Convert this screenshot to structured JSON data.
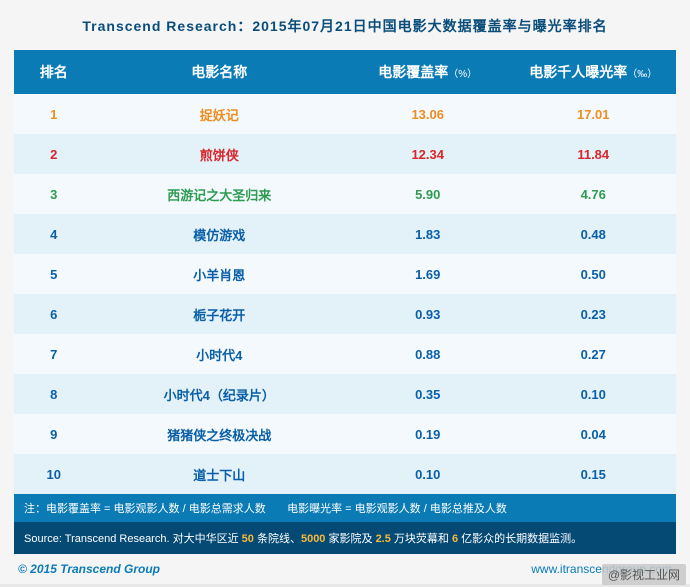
{
  "title": "Transcend Research：2015年07月21日中国电影大数据覆盖率与曝光率排名",
  "columns": {
    "rank": {
      "label": "排名"
    },
    "name": {
      "label": "电影名称"
    },
    "coverage": {
      "label": "电影覆盖率",
      "unit": "（%）"
    },
    "exposure": {
      "label": "电影千人曝光率",
      "unit": "（‰）"
    }
  },
  "colors": {
    "header_bg": "#0a7bb5",
    "header_fg": "#ffffff",
    "row_odd": "#f3f9fc",
    "row_even": "#e3f1f8",
    "source_bg": "#044a75",
    "highlight": "#f7b93a",
    "title_fg": "#0a4d7a",
    "rank1": "#f08c1e",
    "rank2": "#d9262c",
    "rank3": "#2e9b52",
    "default": "#0a5fa8"
  },
  "rows": [
    {
      "rank": "1",
      "name": "捉妖记",
      "coverage": "13.06",
      "exposure": "17.01",
      "color": "#f08c1e"
    },
    {
      "rank": "2",
      "name": "煎饼侠",
      "coverage": "12.34",
      "exposure": "11.84",
      "color": "#d9262c"
    },
    {
      "rank": "3",
      "name": "西游记之大圣归来",
      "coverage": "5.90",
      "exposure": "4.76",
      "color": "#2e9b52"
    },
    {
      "rank": "4",
      "name": "模仿游戏",
      "coverage": "1.83",
      "exposure": "0.48",
      "color": "#0a5fa8"
    },
    {
      "rank": "5",
      "name": "小羊肖恩",
      "coverage": "1.69",
      "exposure": "0.50",
      "color": "#0a5fa8"
    },
    {
      "rank": "6",
      "name": "栀子花开",
      "coverage": "0.93",
      "exposure": "0.23",
      "color": "#0a5fa8"
    },
    {
      "rank": "7",
      "name": "小时代4",
      "coverage": "0.88",
      "exposure": "0.27",
      "color": "#0a5fa8"
    },
    {
      "rank": "8",
      "name": "小时代4（纪录片）",
      "coverage": "0.35",
      "exposure": "0.10",
      "color": "#0a5fa8"
    },
    {
      "rank": "9",
      "name": "猪猪侠之终极决战",
      "coverage": "0.19",
      "exposure": "0.04",
      "color": "#0a5fa8"
    },
    {
      "rank": "10",
      "name": "道士下山",
      "coverage": "0.10",
      "exposure": "0.15",
      "color": "#0a5fa8"
    }
  ],
  "notes": {
    "left": "注：电影覆盖率 = 电影观影人数 / 电影总需求人数",
    "right": "电影曝光率 = 电影观影人数 / 电影总推及人数"
  },
  "source": {
    "prefix": "Source: Transcend Research. 对大中华区近 ",
    "h1": "50",
    "t1": " 条院线、",
    "h2": "5000",
    "t2": " 家影院及 ",
    "h3": "2.5",
    "t3": " 万块荧幕和 ",
    "h4": "6",
    "t4": " 亿影众的长期数据监测。"
  },
  "footer": {
    "left": "© 2015 Transcend Group",
    "right": "www.itranscendgroup.com"
  },
  "watermark": "@影视工业网"
}
